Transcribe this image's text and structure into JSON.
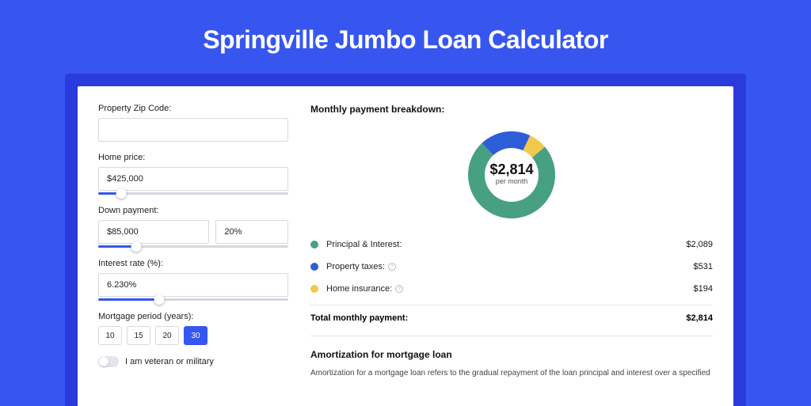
{
  "title": "Springville Jumbo Loan Calculator",
  "colors": {
    "page_bg": "#3756f0",
    "backdrop": "#2a3bdb",
    "panel_bg": "#ffffff",
    "accent": "#3756f0",
    "border": "#d9d9dd",
    "text": "#222222"
  },
  "form": {
    "zip": {
      "label": "Property Zip Code:",
      "value": ""
    },
    "home_price": {
      "label": "Home price:",
      "value": "$425,000",
      "slider_pct": 12
    },
    "down_payment": {
      "label": "Down payment:",
      "amount": "$85,000",
      "pct": "20%",
      "slider_pct": 20
    },
    "interest": {
      "label": "Interest rate (%):",
      "value": "6.230%",
      "slider_pct": 32
    },
    "period": {
      "label": "Mortgage period (years):",
      "options": [
        "10",
        "15",
        "20",
        "30"
      ],
      "selected": "30"
    },
    "veteran": {
      "label": "I am veteran or military",
      "checked": false
    }
  },
  "breakdown": {
    "title": "Monthly payment breakdown:",
    "center_amount": "$2,814",
    "center_sub": "per month",
    "donut": {
      "size": 120,
      "hole": 64,
      "slices": [
        {
          "label": "Principal & Interest:",
          "value": "$2,089",
          "color": "#48a082",
          "pct": 74.2
        },
        {
          "label": "Property taxes:",
          "value": "$531",
          "color": "#2e5dd8",
          "pct": 18.9,
          "info": true
        },
        {
          "label": "Home insurance:",
          "value": "$194",
          "color": "#f0c94c",
          "pct": 6.9,
          "info": true
        }
      ]
    },
    "total": {
      "label": "Total monthly payment:",
      "value": "$2,814"
    }
  },
  "amortization": {
    "title": "Amortization for mortgage loan",
    "text": "Amortization for a mortgage loan refers to the gradual repayment of the loan principal and interest over a specified"
  }
}
